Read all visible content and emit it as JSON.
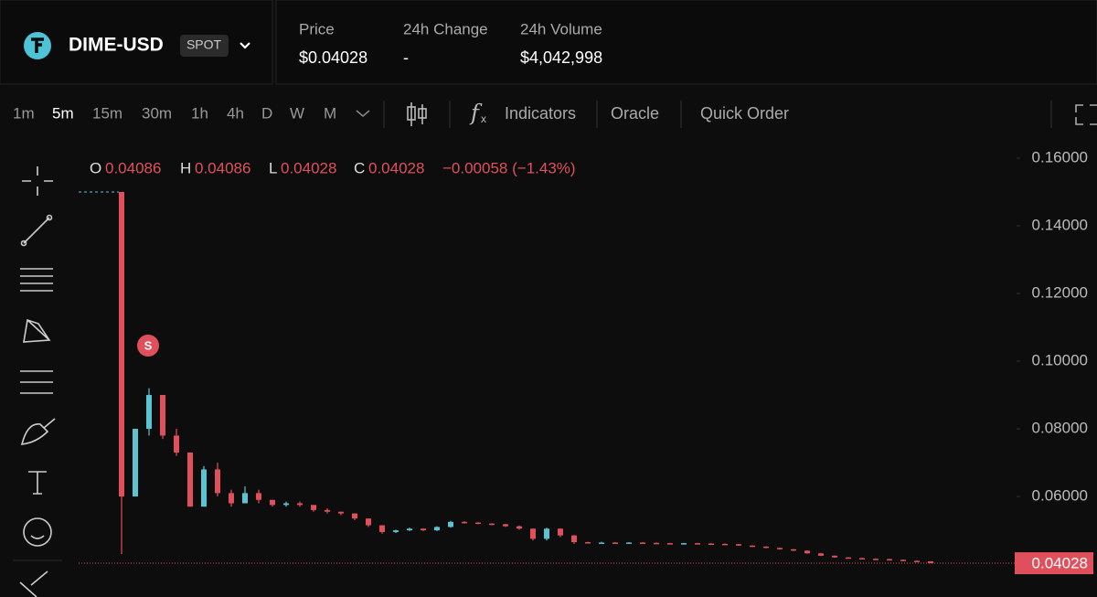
{
  "header": {
    "symbol": "DIME-USD",
    "badge": "SPOT",
    "stats": [
      {
        "label": "Price",
        "value": "$0.04028"
      },
      {
        "label": "24h Change",
        "value": "-"
      },
      {
        "label": "24h Volume",
        "value": "$4,042,998"
      }
    ]
  },
  "toolbar": {
    "intervals": [
      "1m",
      "5m",
      "15m",
      "30m",
      "1h",
      "4h",
      "D",
      "W",
      "M"
    ],
    "buttons": [
      "Indicators",
      "Oracle",
      "Quick Order"
    ]
  },
  "chart_data": {
    "type": "candlestick",
    "ohlc_labels": [
      "O",
      "H",
      "L",
      "C"
    ],
    "change": "−0.00058 (−1.43%)",
    "marker_label": "S",
    "up_color": "#5cc3d2",
    "down_color": "#e0505c",
    "ylim": [
      0.0303,
      0.1662
    ],
    "yticks": [
      {
        "value": 0.16,
        "label": "0.16000"
      },
      {
        "value": 0.14,
        "label": "0.14000"
      },
      {
        "value": 0.12,
        "label": "0.12000"
      },
      {
        "value": 0.1,
        "label": "0.10000"
      },
      {
        "value": 0.08,
        "label": "0.08000"
      },
      {
        "value": 0.06,
        "label": "0.06000"
      }
    ],
    "last_price": {
      "value": 0.04028,
      "label": "0.04028"
    },
    "ohlc": [
      [
        0.15,
        0.15,
        0.043,
        0.06
      ],
      [
        0.06,
        0.08,
        0.06,
        0.08
      ],
      [
        0.08,
        0.092,
        0.078,
        0.09
      ],
      [
        0.09,
        0.09,
        0.077,
        0.078
      ],
      [
        0.078,
        0.08,
        0.072,
        0.073
      ],
      [
        0.073,
        0.073,
        0.057,
        0.057
      ],
      [
        0.057,
        0.069,
        0.057,
        0.068
      ],
      [
        0.068,
        0.07,
        0.06,
        0.061
      ],
      [
        0.061,
        0.062,
        0.057,
        0.058
      ],
      [
        0.058,
        0.063,
        0.058,
        0.061
      ],
      [
        0.061,
        0.062,
        0.058,
        0.059
      ],
      [
        0.059,
        0.059,
        0.057,
        0.0575
      ],
      [
        0.0575,
        0.0585,
        0.057,
        0.058
      ],
      [
        0.058,
        0.0585,
        0.057,
        0.0575
      ],
      [
        0.0575,
        0.0575,
        0.0555,
        0.056
      ],
      [
        0.056,
        0.0565,
        0.055,
        0.0555
      ],
      [
        0.0555,
        0.0555,
        0.0545,
        0.055
      ],
      [
        0.055,
        0.055,
        0.053,
        0.0535
      ],
      [
        0.0535,
        0.0535,
        0.051,
        0.0515
      ],
      [
        0.0515,
        0.0515,
        0.049,
        0.0495
      ],
      [
        0.0495,
        0.0502,
        0.0492,
        0.05
      ],
      [
        0.05,
        0.0508,
        0.0498,
        0.0505
      ],
      [
        0.0505,
        0.0506,
        0.0498,
        0.05
      ],
      [
        0.05,
        0.0512,
        0.0498,
        0.051
      ],
      [
        0.051,
        0.0528,
        0.0508,
        0.0525
      ],
      [
        0.0525,
        0.0527,
        0.052,
        0.0523
      ],
      [
        0.0523,
        0.0524,
        0.0518,
        0.052
      ],
      [
        0.052,
        0.0521,
        0.0515,
        0.0518
      ],
      [
        0.0518,
        0.0519,
        0.051,
        0.0512
      ],
      [
        0.0512,
        0.0514,
        0.0502,
        0.0505
      ],
      [
        0.0505,
        0.0506,
        0.047,
        0.0475
      ],
      [
        0.0475,
        0.0508,
        0.047,
        0.0505
      ],
      [
        0.0505,
        0.0506,
        0.048,
        0.0485
      ],
      [
        0.0485,
        0.0486,
        0.046,
        0.0465
      ],
      [
        0.0465,
        0.0466,
        0.0461,
        0.0463
      ],
      [
        0.0463,
        0.0466,
        0.0462,
        0.0464
      ],
      [
        0.0464,
        0.0465,
        0.0461,
        0.0463
      ],
      [
        0.0463,
        0.0465,
        0.0462,
        0.0464
      ],
      [
        0.0464,
        0.0465,
        0.0462,
        0.0463
      ],
      [
        0.0463,
        0.0464,
        0.0461,
        0.0462
      ],
      [
        0.0462,
        0.0463,
        0.046,
        0.0461
      ],
      [
        0.0461,
        0.0463,
        0.046,
        0.0462
      ],
      [
        0.0462,
        0.0463,
        0.046,
        0.0461
      ],
      [
        0.0461,
        0.0462,
        0.0459,
        0.046
      ],
      [
        0.046,
        0.0461,
        0.0458,
        0.0459
      ],
      [
        0.0459,
        0.046,
        0.0454,
        0.0455
      ],
      [
        0.0455,
        0.0456,
        0.0451,
        0.0452
      ],
      [
        0.0452,
        0.0453,
        0.0447,
        0.0448
      ],
      [
        0.0448,
        0.0449,
        0.0443,
        0.0444
      ],
      [
        0.0444,
        0.0445,
        0.0439,
        0.044
      ],
      [
        0.044,
        0.0441,
        0.0431,
        0.0432
      ],
      [
        0.0432,
        0.0433,
        0.0424,
        0.0425
      ],
      [
        0.0425,
        0.0426,
        0.0419,
        0.042
      ],
      [
        0.042,
        0.0421,
        0.0417,
        0.0418
      ],
      [
        0.0418,
        0.0419,
        0.0415,
        0.0416
      ],
      [
        0.0416,
        0.0417,
        0.0414,
        0.0415
      ],
      [
        0.0415,
        0.0416,
        0.0412,
        0.0413
      ],
      [
        0.0413,
        0.0414,
        0.0409,
        0.041
      ],
      [
        0.041,
        0.0411,
        0.0407,
        0.04086
      ],
      [
        0.04086,
        0.04086,
        0.04028,
        0.04028
      ]
    ]
  }
}
